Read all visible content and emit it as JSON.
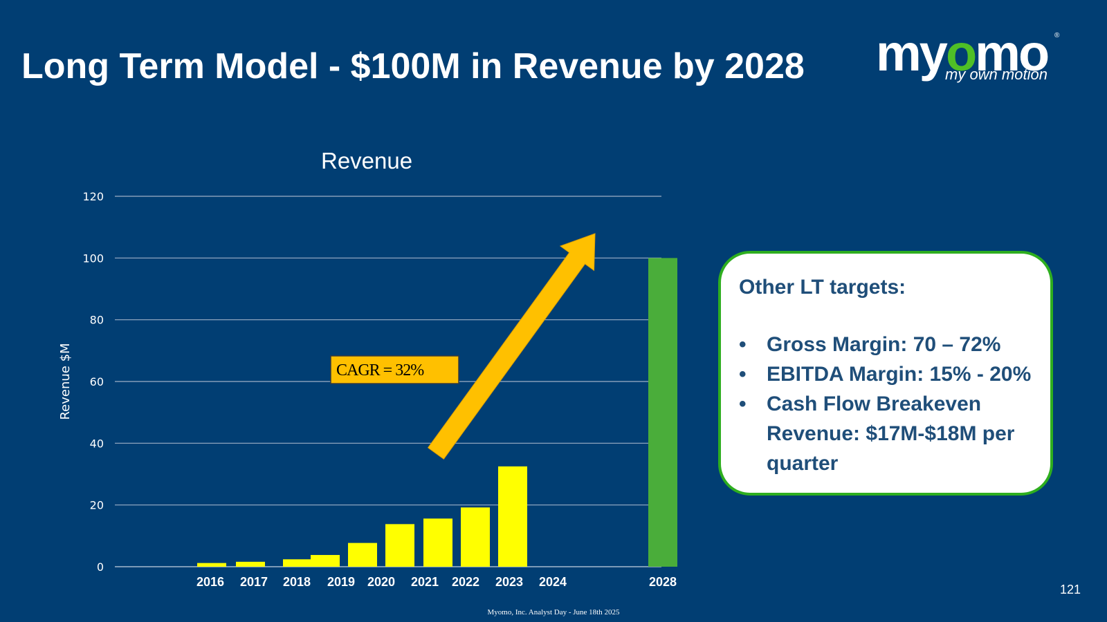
{
  "slide": {
    "title": "Long Term Model - $100M in Revenue by 2028",
    "page_number": "121",
    "footer": "Myomo, Inc. Analyst Day - June 18th 2025"
  },
  "logo": {
    "word_part1": "my",
    "word_o": "o",
    "word_part2": "mo",
    "registered": "®",
    "tagline": "my own motion",
    "accent_color": "#4fbf26"
  },
  "chart_data": {
    "type": "bar",
    "title": "Revenue",
    "xlabel": "",
    "ylabel": "Revenue $M",
    "ylim": [
      0,
      120
    ],
    "yticks": [
      0,
      20,
      40,
      60,
      80,
      100,
      120
    ],
    "grid": true,
    "categories": [
      "2016",
      "2017",
      "2018",
      "2019",
      "2020",
      "2021",
      "2022",
      "2023",
      "2024",
      "2028"
    ],
    "values": [
      1.2,
      1.6,
      2.4,
      3.8,
      7.7,
      13.8,
      15.6,
      19.2,
      32.5,
      100
    ],
    "bar_colors": [
      "#ffff00",
      "#ffff00",
      "#ffff00",
      "#ffff00",
      "#ffff00",
      "#ffff00",
      "#ffff00",
      "#ffff00",
      "#ffff00",
      "#4aad3a"
    ],
    "annotation": {
      "label": "CAGR = 32%",
      "arrow_color": "#ffc000",
      "label_background": "#ffc000"
    }
  },
  "targets": {
    "heading": "Other LT targets:",
    "items": [
      "Gross Margin: 70 – 72%",
      "EBITDA Margin: 15% - 20%",
      "Cash Flow Breakeven Revenue: $17M-$18M per quarter"
    ],
    "bullet": "•",
    "border_color": "#2eae1f"
  }
}
